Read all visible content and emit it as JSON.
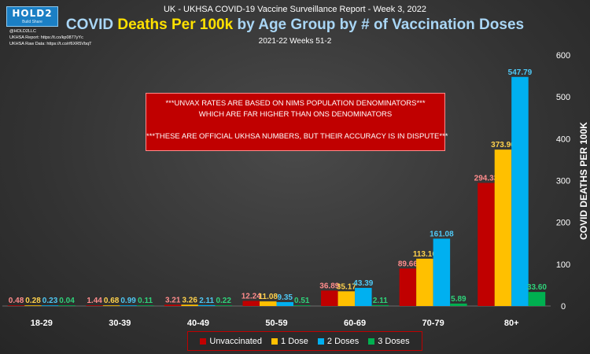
{
  "header": {
    "logo_text": "HOLD2",
    "logo_tagline": "Build Share",
    "handle": "@HOLD2LLC",
    "report_link": "UKHSA Report: https://t.co/kp0877yYc",
    "raw_data_link": "UKHSA Raw Data: https://t.co/rf6XR5VbqT",
    "supertitle": "UK - UKHSA COVID-19 Vaccine Surveillance Report - Week 3, 2022",
    "title_prefix": "COVID",
    "title_highlight": "Deaths Per 100k",
    "title_suffix": "by Age Group by # of Vaccination Doses",
    "subtitle": "2021-22 Weeks 51-2"
  },
  "notice": {
    "line1": "***UNVAX RATES ARE BASED ON NIMS POPULATION DENOMINATORS***",
    "line2": "WHICH ARE FAR HIGHER THAN ONS DENOMINATORS",
    "line3": "***THESE ARE OFFICIAL UKHSA NUMBERS, BUT THEIR ACCURACY IS IN DISPUTE***"
  },
  "colors": {
    "background": "#333333",
    "accent_title": "#ffe100",
    "title": "#a9d6f5",
    "notice_bg": "#c00000"
  },
  "chart_data": {
    "type": "bar",
    "categories": [
      "18-29",
      "30-39",
      "40-49",
      "50-59",
      "60-69",
      "70-79",
      "80+"
    ],
    "series": [
      {
        "name": "Unvaccinated",
        "color": "#c00000",
        "label_color": "#ff8c8c",
        "values": [
          0.48,
          1.44,
          3.21,
          12.24,
          36.89,
          89.66,
          294.33
        ],
        "labels": [
          "0.48",
          "1.44",
          "3.21",
          "12.24",
          "36.89",
          "89.66",
          "294.33"
        ]
      },
      {
        "name": "1 Dose",
        "color": "#ffc000",
        "label_color": "#ffd24d",
        "values": [
          0.28,
          0.68,
          3.26,
          11.08,
          35.17,
          113.16,
          373.96
        ],
        "labels": [
          "0.28",
          "0.68",
          "3.26",
          "11.08",
          "35.17",
          "113.16",
          "373.96"
        ]
      },
      {
        "name": "2 Doses",
        "color": "#00b0f0",
        "label_color": "#4fc8f5",
        "values": [
          0.23,
          0.99,
          2.11,
          9.35,
          43.39,
          161.08,
          547.79
        ],
        "labels": [
          "0.23",
          "0.99",
          "2.11",
          "9.35",
          "43.39",
          "161.08",
          "547.79"
        ]
      },
      {
        "name": "3 Doses",
        "color": "#00b050",
        "label_color": "#2fd27a",
        "values": [
          0.04,
          0.11,
          0.22,
          0.51,
          2.11,
          5.89,
          33.6
        ],
        "labels": [
          "0.04",
          "0.11",
          "0.22",
          "0.51",
          "2.11",
          "5.89",
          "33.60"
        ]
      }
    ],
    "ylabel": "COVID DEATHS PER 100K",
    "ylim": [
      0,
      600
    ],
    "yticks": [
      "0",
      "100",
      "200",
      "300",
      "400",
      "500",
      "600"
    ],
    "grid": false,
    "legend": "bottom"
  }
}
